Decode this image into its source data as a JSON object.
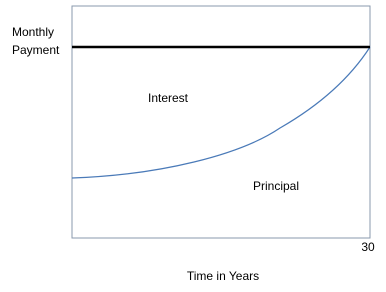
{
  "y_axis_label": {
    "line1": "Monthly",
    "line2": "Payment"
  },
  "regions": {
    "upper": "Interest",
    "lower": "Principal"
  },
  "x_axis": {
    "end_label": "30",
    "title": "Time in Years"
  }
}
